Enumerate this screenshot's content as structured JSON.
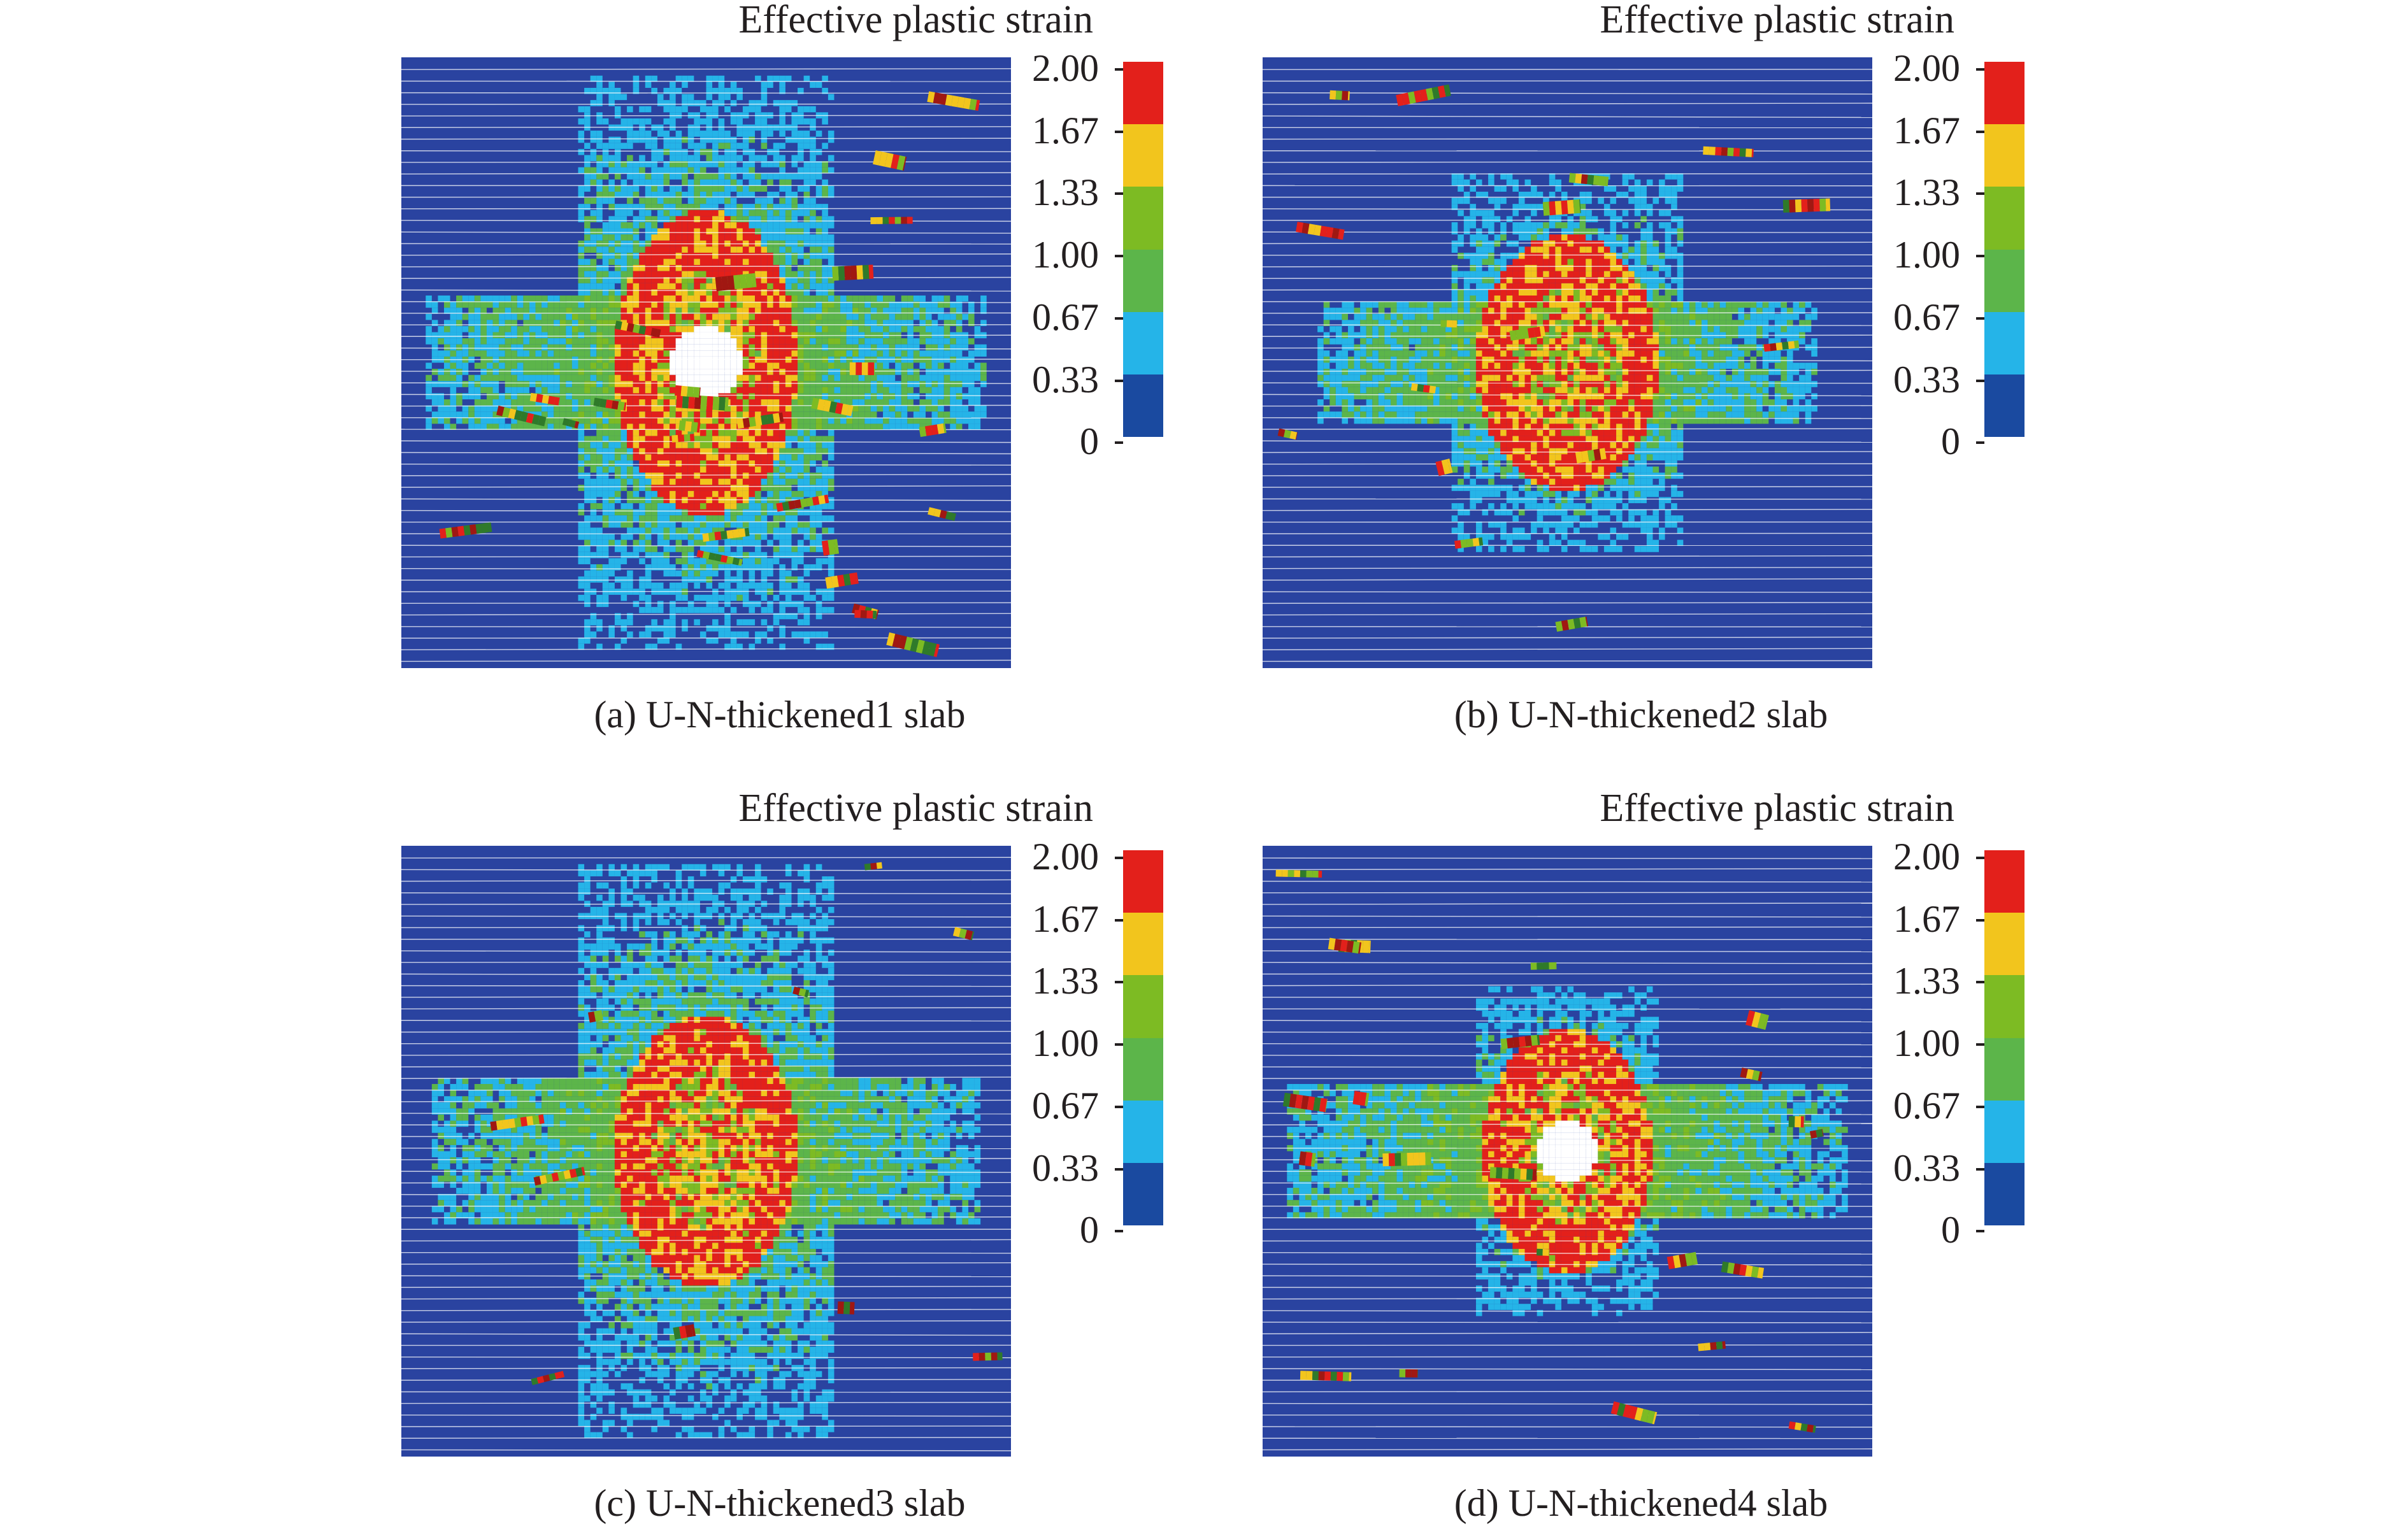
{
  "colorbar": {
    "title": "Effective plastic strain",
    "ticks": [
      "2.00",
      "1.67",
      "1.33",
      "1.00",
      "0.67",
      "0.33",
      "0"
    ],
    "colors": [
      "#e3201b",
      "#f2c51d",
      "#7dbb23",
      "#5cb54a",
      "#25b4e8",
      "#1a4aa0"
    ]
  },
  "slab_color": "#2a43a0",
  "panels": [
    {
      "caption": "(a) U-N-thickened1 slab"
    },
    {
      "caption": "(b) U-N-thickened2 slab"
    },
    {
      "caption": "(c) U-N-thickened3 slab"
    },
    {
      "caption": "(d) U-N-thickened4 slab"
    }
  ]
}
